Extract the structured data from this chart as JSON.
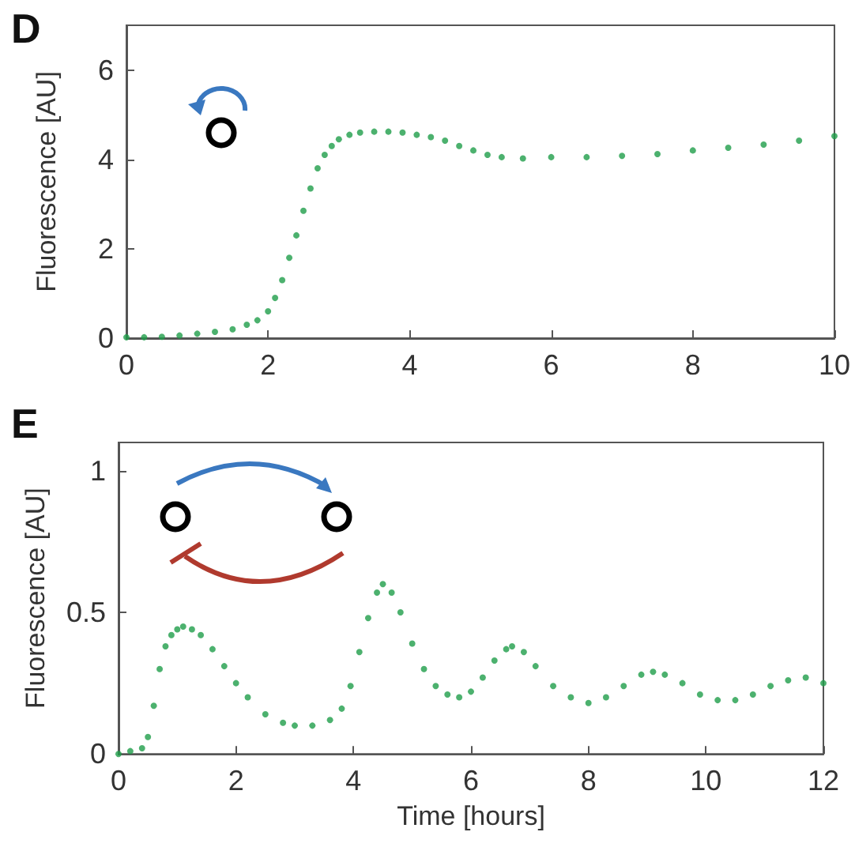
{
  "chart_data": [
    {
      "type": "scatter",
      "title": "D",
      "ylabel": "Fluorescence [AU]",
      "xlim": [
        0,
        10
      ],
      "ylim": [
        0,
        7
      ],
      "xticks": [
        0,
        2,
        4,
        6,
        8,
        10
      ],
      "yticks": [
        0,
        2,
        4,
        6
      ],
      "marker": "circle",
      "series": [
        {
          "color": "#1f9e4a",
          "x": [
            0,
            0.25,
            0.5,
            0.75,
            1,
            1.25,
            1.5,
            1.7,
            1.85,
            2,
            2.1,
            2.2,
            2.3,
            2.4,
            2.5,
            2.6,
            2.7,
            2.8,
            2.9,
            3,
            3.15,
            3.3,
            3.5,
            3.7,
            3.9,
            4.1,
            4.3,
            4.5,
            4.7,
            4.9,
            5.1,
            5.3,
            5.6,
            6,
            6.5,
            7,
            7.5,
            8,
            8.5,
            9,
            9.5,
            10
          ],
          "values": [
            0.02,
            0.02,
            0.03,
            0.06,
            0.1,
            0.14,
            0.2,
            0.3,
            0.4,
            0.6,
            0.9,
            1.3,
            1.8,
            2.3,
            2.85,
            3.35,
            3.8,
            4.1,
            4.3,
            4.45,
            4.55,
            4.6,
            4.62,
            4.62,
            4.6,
            4.55,
            4.5,
            4.42,
            4.3,
            4.2,
            4.1,
            4.05,
            4.02,
            4.05,
            4.05,
            4.08,
            4.12,
            4.2,
            4.26,
            4.33,
            4.42,
            4.52
          ]
        }
      ]
    },
    {
      "type": "scatter",
      "title": "E",
      "xlabel": "Time [hours]",
      "ylabel": "Fluorescence [AU]",
      "xlim": [
        0,
        12
      ],
      "ylim": [
        0,
        1.1
      ],
      "xticks": [
        0,
        2,
        4,
        6,
        8,
        10,
        12
      ],
      "yticks": [
        0,
        0.5,
        1
      ],
      "marker": "circle",
      "series": [
        {
          "color": "#1f9e4a",
          "x": [
            0,
            0.2,
            0.4,
            0.5,
            0.6,
            0.7,
            0.8,
            0.9,
            1,
            1.1,
            1.25,
            1.4,
            1.6,
            1.8,
            2,
            2.2,
            2.5,
            2.8,
            3,
            3.3,
            3.6,
            3.8,
            3.95,
            4.1,
            4.25,
            4.4,
            4.5,
            4.65,
            4.8,
            5,
            5.2,
            5.4,
            5.6,
            5.8,
            6,
            6.2,
            6.4,
            6.6,
            6.7,
            6.9,
            7.1,
            7.4,
            7.7,
            8,
            8.3,
            8.6,
            8.9,
            9.1,
            9.3,
            9.6,
            9.9,
            10.2,
            10.5,
            10.8,
            11.1,
            11.4,
            11.7,
            12
          ],
          "values": [
            0,
            0.01,
            0.02,
            0.06,
            0.17,
            0.3,
            0.38,
            0.42,
            0.44,
            0.45,
            0.44,
            0.42,
            0.37,
            0.31,
            0.25,
            0.2,
            0.14,
            0.11,
            0.1,
            0.1,
            0.12,
            0.16,
            0.24,
            0.36,
            0.48,
            0.57,
            0.6,
            0.57,
            0.5,
            0.39,
            0.3,
            0.24,
            0.21,
            0.2,
            0.22,
            0.27,
            0.33,
            0.37,
            0.38,
            0.36,
            0.31,
            0.24,
            0.2,
            0.18,
            0.2,
            0.24,
            0.28,
            0.29,
            0.28,
            0.25,
            0.21,
            0.19,
            0.19,
            0.21,
            0.24,
            0.26,
            0.27,
            0.25
          ]
        }
      ]
    }
  ]
}
